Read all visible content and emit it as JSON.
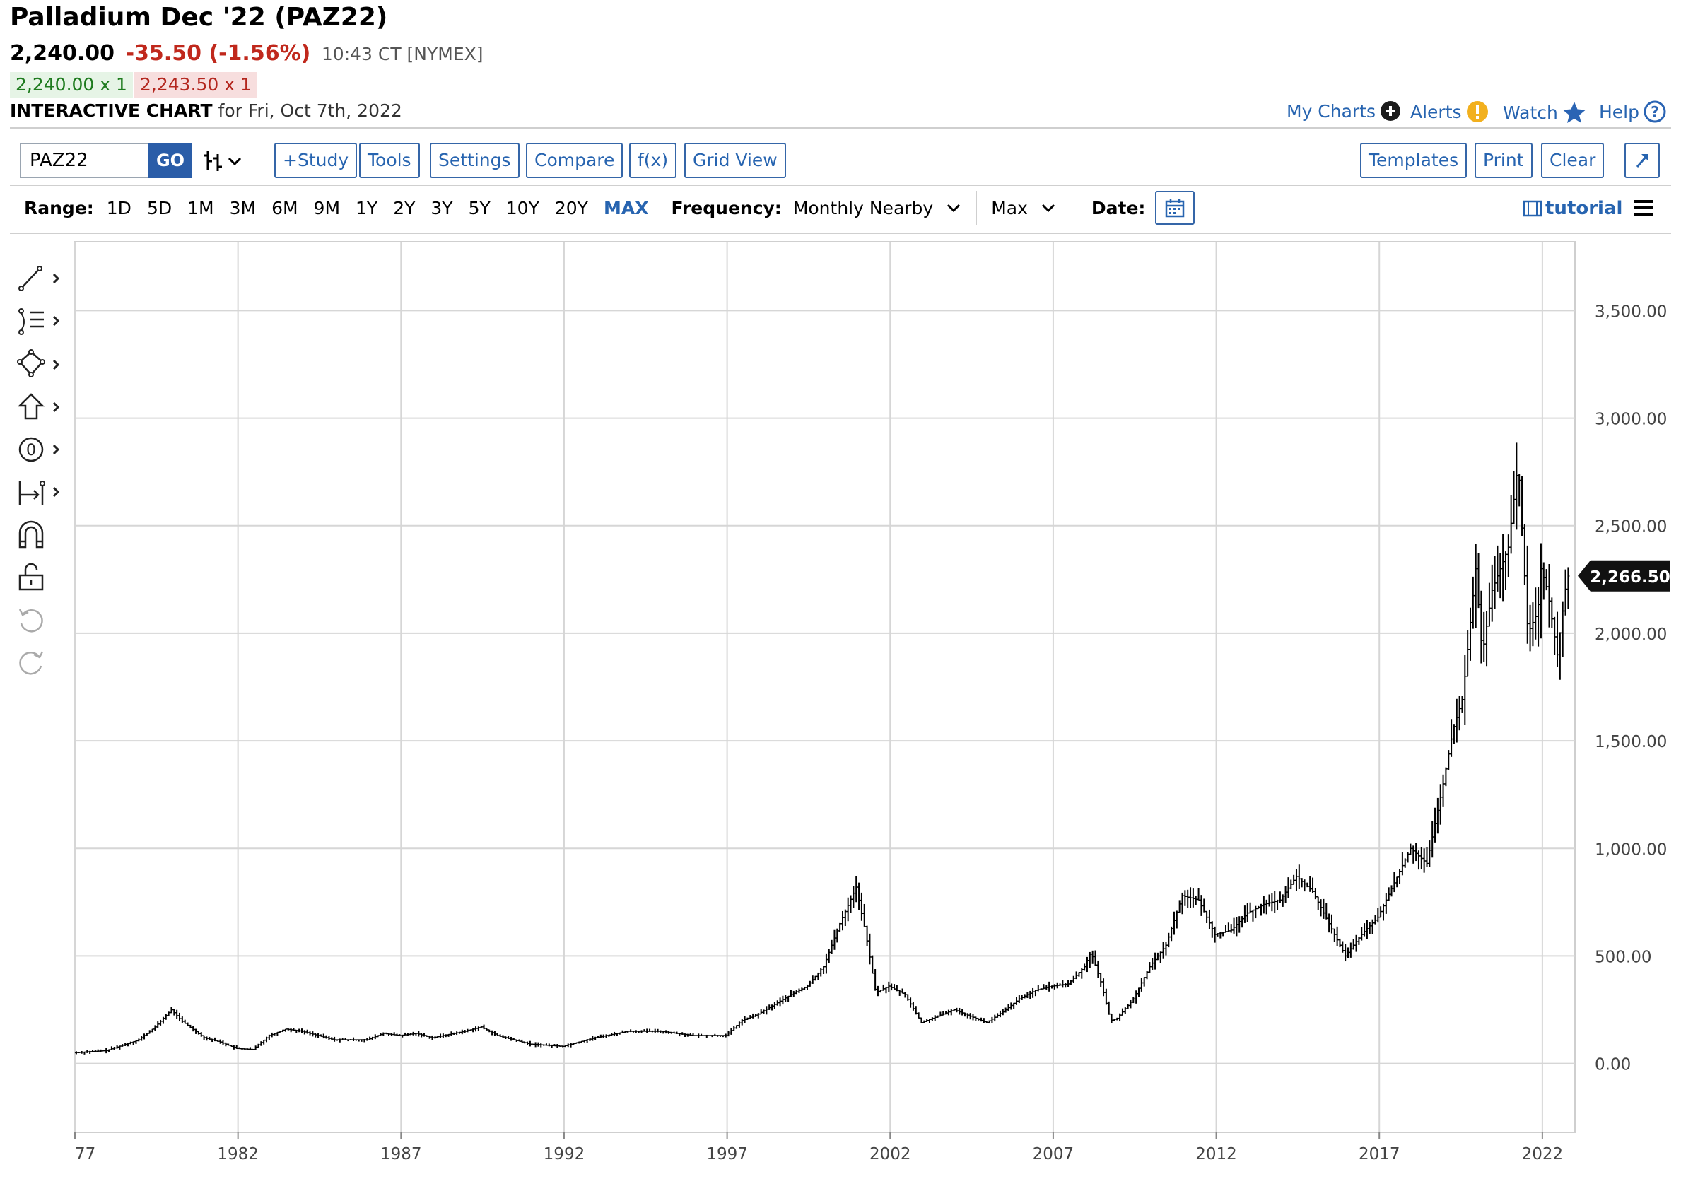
{
  "header": {
    "title": "Palladium Dec '22 (PAZ22)",
    "price": "2,240.00",
    "change": "-35.50 (-1.56%)",
    "time": "10:43 CT [NYMEX]",
    "bid": "2,240.00 x 1",
    "ask": "2,243.50 x 1",
    "chart_label": "INTERACTIVE CHART",
    "chart_for": "for Fri, Oct 7th, 2022"
  },
  "top_links": {
    "my_charts": "My Charts",
    "alerts": "Alerts",
    "watch": "Watch",
    "help": "Help"
  },
  "toolbar": {
    "symbol_value": "PAZ22",
    "go_label": "GO",
    "study_label": "+Study",
    "tools_label": "Tools",
    "settings_label": "Settings",
    "compare_label": "Compare",
    "fx_label": "f(x)",
    "grid_view_label": "Grid View",
    "templates_label": "Templates",
    "print_label": "Print",
    "clear_label": "Clear"
  },
  "range_bar": {
    "range_label": "Range:",
    "ranges": [
      "1D",
      "5D",
      "1M",
      "3M",
      "6M",
      "9M",
      "1Y",
      "2Y",
      "3Y",
      "5Y",
      "10Y",
      "20Y",
      "MAX"
    ],
    "active_range": "MAX",
    "frequency_label": "Frequency:",
    "frequency_value": "Monthly Nearby",
    "period_value": "Max",
    "date_label": "Date:",
    "tutorial_label": "tutorial"
  },
  "colors": {
    "accent": "#2764b0",
    "negative": "#c0281c",
    "positive": "#1e7b1e",
    "bars": "#000000",
    "grid": "#d6d6d6"
  },
  "icons": [
    "line-tool-icon",
    "fib-tool-icon",
    "shape-tool-icon",
    "arrow-tool-icon",
    "annotation-tool-icon",
    "measure-tool-icon",
    "magnet-icon",
    "lock-icon",
    "undo-icon",
    "redo-icon"
  ],
  "chart_data": {
    "type": "line",
    "style": "ohlc-bars",
    "x_tick_labels": [
      "77",
      "1982",
      "1987",
      "1992",
      "1997",
      "2002",
      "2007",
      "2012",
      "2017",
      "2022"
    ],
    "y_tick_labels": [
      "0.00",
      "500.00",
      "1,000.00",
      "1,500.00",
      "2,000.00",
      "2,500.00",
      "3,000.00",
      "3,500.00"
    ],
    "ylim": [
      -320,
      3820
    ],
    "xlim": [
      1977.0,
      2023.0
    ],
    "last_price_label": "2,266.50",
    "last_price": 2266.5,
    "grid": true,
    "series": [
      {
        "x": [
          1977.0,
          1978.0,
          1979.0,
          1979.5,
          1980.0,
          1980.3,
          1981.0,
          1981.5,
          1982.0,
          1982.5,
          1983.0,
          1983.5,
          1984.0,
          1985.0,
          1986.0,
          1986.5,
          1987.0,
          1987.5,
          1988.0,
          1989.0,
          1989.5,
          1990.0,
          1991.0,
          1992.0,
          1993.0,
          1994.0,
          1995.0,
          1996.0,
          1997.0,
          1997.5,
          1998.0,
          1999.0,
          1999.5,
          2000.0,
          2000.5,
          2001.0,
          2001.3,
          2001.6,
          2002.0,
          2002.5,
          2003.0,
          2003.5,
          2004.0,
          2004.5,
          2005.0,
          2005.5,
          2006.0,
          2006.5,
          2007.0,
          2007.5,
          2008.0,
          2008.2,
          2008.5,
          2008.8,
          2009.0,
          2009.5,
          2010.0,
          2010.5,
          2011.0,
          2011.5,
          2012.0,
          2012.5,
          2013.0,
          2013.5,
          2014.0,
          2014.5,
          2015.0,
          2015.5,
          2016.0,
          2016.5,
          2017.0,
          2017.5,
          2018.0,
          2018.5,
          2019.0,
          2019.3,
          2019.6,
          2020.0,
          2020.2,
          2020.5,
          2021.0,
          2021.3,
          2021.6,
          2021.9,
          2022.0,
          2022.2,
          2022.5,
          2022.8
        ],
        "y": [
          50,
          60,
          110,
          170,
          250,
          200,
          120,
          100,
          70,
          65,
          130,
          160,
          150,
          110,
          110,
          140,
          130,
          140,
          120,
          150,
          170,
          130,
          90,
          80,
          120,
          150,
          150,
          130,
          130,
          200,
          230,
          320,
          360,
          450,
          650,
          820,
          600,
          330,
          360,
          320,
          190,
          220,
          250,
          220,
          190,
          240,
          300,
          340,
          360,
          370,
          450,
          520,
          380,
          200,
          210,
          300,
          450,
          550,
          780,
          760,
          600,
          620,
          700,
          740,
          760,
          870,
          800,
          650,
          500,
          600,
          680,
          840,
          1000,
          930,
          1300,
          1550,
          1700,
          2300,
          1900,
          2200,
          2400,
          2800,
          2000,
          2100,
          2300,
          2200,
          1900,
          2266
        ]
      }
    ]
  }
}
